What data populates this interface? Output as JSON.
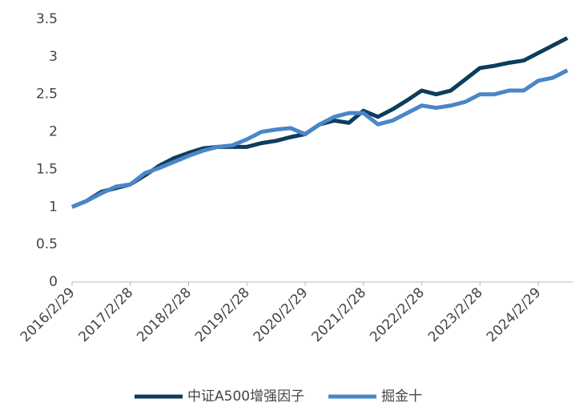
{
  "chart_data": {
    "type": "line",
    "categories": [
      "2016/2/29",
      null,
      null,
      null,
      "2017/2/28",
      null,
      null,
      null,
      "2018/2/28",
      null,
      null,
      null,
      "2019/2/28",
      null,
      null,
      null,
      "2020/2/29",
      null,
      null,
      null,
      "2021/2/28",
      null,
      null,
      null,
      "2022/2/28",
      null,
      null,
      null,
      "2023/2/28",
      null,
      null,
      null,
      "2024/2/29",
      null,
      null
    ],
    "series": [
      {
        "name": "中证A500增强因子",
        "color": "#0d3d5c",
        "values": [
          1.0,
          1.08,
          1.2,
          1.25,
          1.3,
          1.42,
          1.55,
          1.65,
          1.72,
          1.78,
          1.8,
          1.8,
          1.8,
          1.85,
          1.88,
          1.93,
          1.97,
          2.1,
          2.15,
          2.12,
          2.28,
          2.2,
          2.3,
          2.42,
          2.55,
          2.5,
          2.55,
          2.7,
          2.85,
          2.88,
          2.92,
          2.95,
          3.05,
          3.15,
          3.25
        ]
      },
      {
        "name": "掘金十",
        "color": "#4a86c8",
        "values": [
          1.0,
          1.08,
          1.18,
          1.27,
          1.3,
          1.45,
          1.52,
          1.6,
          1.68,
          1.75,
          1.8,
          1.82,
          1.9,
          2.0,
          2.03,
          2.05,
          1.97,
          2.1,
          2.2,
          2.25,
          2.25,
          2.1,
          2.15,
          2.25,
          2.35,
          2.32,
          2.35,
          2.4,
          2.5,
          2.5,
          2.55,
          2.55,
          2.68,
          2.72,
          2.82
        ]
      }
    ],
    "ylim": [
      0,
      3.5
    ],
    "yticks": [
      0,
      0.5,
      1,
      1.5,
      2,
      2.5,
      3,
      3.5
    ],
    "grid": false,
    "legend": "bottom"
  }
}
